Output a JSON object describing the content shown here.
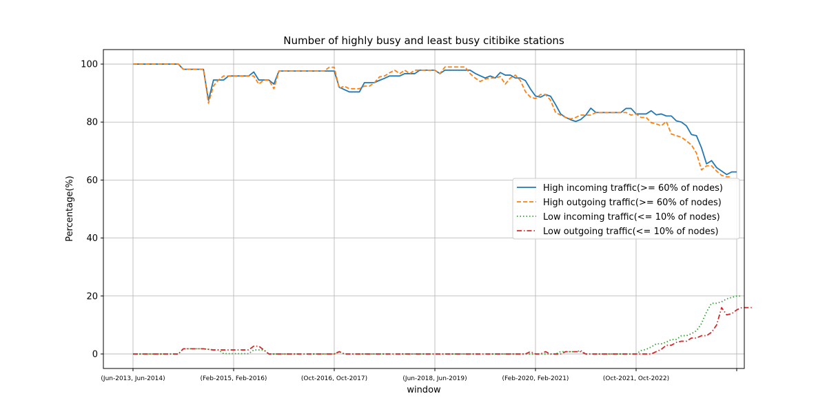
{
  "chart_data": {
    "type": "line",
    "title": "Number of highly busy and least busy citibike stations",
    "xlabel": "window",
    "ylabel": "Percentage(%)",
    "ylim": [
      -5,
      105
    ],
    "y_ticks": [
      0,
      20,
      40,
      60,
      80,
      100
    ],
    "x_ticks": [
      {
        "index": 0,
        "label": "(Jun-2013, Jun-2014)"
      },
      {
        "index": 20,
        "label": "(Feb-2015, Feb-2016)"
      },
      {
        "index": 40,
        "label": "(Oct-2016, Oct-2017)"
      },
      {
        "index": 60,
        "label": "(Jun-2018, Jun-2019)"
      },
      {
        "index": 80,
        "label": "(Feb-2020, Feb-2021)"
      },
      {
        "index": 100,
        "label": "(Oct-2021, Oct-2022)"
      },
      {
        "index": 120,
        "label": ""
      }
    ],
    "grid": true,
    "legend_position": "center-right",
    "series": [
      {
        "name": "High incoming traffic(>= 60% of nodes)",
        "color": "#1f77b4",
        "dash": "solid",
        "values": [
          100,
          100,
          100,
          100,
          100,
          100,
          100,
          100,
          100,
          100,
          98.2,
          98.2,
          98.2,
          98.2,
          98.2,
          87.5,
          94.5,
          94.5,
          94.5,
          95.9,
          95.9,
          95.9,
          95.9,
          95.9,
          97.3,
          94.5,
          94.5,
          94.5,
          93.1,
          97.6,
          97.6,
          97.6,
          97.6,
          97.6,
          97.6,
          97.6,
          97.6,
          97.6,
          97.6,
          97.6,
          97.6,
          92.0,
          91.2,
          90.4,
          90.4,
          90.4,
          93.6,
          93.6,
          93.6,
          94.4,
          95.1,
          95.9,
          95.9,
          95.9,
          96.7,
          96.7,
          96.7,
          97.9,
          97.9,
          97.9,
          97.9,
          96.7,
          97.9,
          97.9,
          97.9,
          97.9,
          97.9,
          97.9,
          96.8,
          96.0,
          95.2,
          95.9,
          95.2,
          97.1,
          96.2,
          96.2,
          95.2,
          95.2,
          94.3,
          91.4,
          89.0,
          88.6,
          89.5,
          88.9,
          86.0,
          82.8,
          81.6,
          80.8,
          80.2,
          80.9,
          82.4,
          84.8,
          83.3,
          83.3,
          83.3,
          83.3,
          83.3,
          83.3,
          84.7,
          84.7,
          82.8,
          82.8,
          82.8,
          83.9,
          82.5,
          82.8,
          82.1,
          82.1,
          80.4,
          80.0,
          78.7,
          75.7,
          75.3,
          71.1,
          65.6,
          66.7,
          64.3,
          63.1,
          61.9,
          62.8,
          62.8
        ]
      },
      {
        "name": "High outgoing traffic(>= 60% of nodes)",
        "color": "#ff7f0e",
        "dash": "dashed",
        "values": [
          100,
          100,
          100,
          100,
          100,
          100,
          100,
          100,
          100,
          100,
          98.2,
          98.2,
          98.2,
          98.2,
          98.2,
          86.5,
          92.5,
          94.5,
          95.9,
          95.9,
          95.9,
          95.9,
          95.9,
          95.9,
          95.9,
          93.1,
          94.5,
          94.5,
          91.5,
          97.6,
          97.6,
          97.6,
          97.6,
          97.6,
          97.6,
          97.6,
          97.6,
          97.6,
          97.6,
          98.9,
          98.9,
          91.6,
          92.4,
          91.5,
          91.5,
          91.5,
          92.4,
          92.4,
          93.6,
          95.6,
          95.9,
          97.0,
          97.9,
          96.7,
          97.9,
          96.7,
          97.9,
          97.9,
          97.9,
          97.9,
          97.9,
          96.7,
          99.0,
          99.0,
          99.0,
          99.0,
          99.0,
          96.7,
          95.2,
          94.0,
          94.8,
          95.2,
          95.2,
          95.7,
          93.1,
          95.2,
          96.2,
          94.3,
          90.5,
          88.6,
          88.1,
          89.5,
          89.5,
          87.5,
          83.3,
          82.4,
          81.6,
          81.1,
          81.6,
          82.4,
          82.4,
          82.4,
          83.3,
          83.3,
          83.3,
          83.3,
          83.3,
          83.3,
          83.3,
          82.4,
          82.8,
          81.6,
          81.6,
          79.8,
          79.4,
          78.7,
          80.2,
          75.9,
          75.3,
          74.8,
          73.5,
          72.1,
          69.3,
          63.5,
          64.9,
          64.9,
          63.1,
          61.6,
          61.1,
          61.1
        ]
      },
      {
        "name": "Low incoming traffic(<= 10% of nodes)",
        "color": "#2ca02c",
        "dash": "dotted",
        "values": [
          0,
          0,
          0,
          0,
          0,
          0,
          0,
          0,
          0,
          0,
          1.8,
          1.8,
          1.8,
          1.8,
          1.8,
          1.6,
          1.4,
          1.4,
          0.1,
          0.1,
          0.1,
          0.1,
          0.1,
          0.1,
          1.4,
          1.4,
          1.4,
          0,
          0,
          0,
          0,
          0,
          0,
          0,
          0,
          0,
          0,
          0,
          0,
          0,
          0,
          0.8,
          0,
          0,
          0,
          0,
          0,
          0,
          0,
          0,
          0,
          0,
          0,
          0,
          0,
          0,
          0,
          0,
          0,
          0,
          0,
          0,
          0,
          0,
          0,
          0,
          0,
          0,
          0,
          0,
          0,
          0,
          0,
          0,
          0,
          0,
          0,
          0,
          0,
          0,
          0,
          0,
          0,
          0,
          0,
          0.8,
          0.8,
          0.8,
          0.8,
          1.2,
          0,
          0,
          0,
          0,
          0,
          0,
          0,
          0,
          0,
          0,
          0,
          1.2,
          1.6,
          2.4,
          3.5,
          3.5,
          4.1,
          5.0,
          5.0,
          6.3,
          6.3,
          7.0,
          8.0,
          10.5,
          14.5,
          17.5,
          17.5,
          18.0,
          19.0,
          19.5,
          20.0,
          20.0
        ]
      },
      {
        "name": "Low outgoing traffic(<= 10% of nodes)",
        "color": "#d62728",
        "dash": "dashdot",
        "values": [
          0,
          0,
          0,
          0,
          0,
          0,
          0,
          0,
          0,
          0,
          1.8,
          1.8,
          1.8,
          1.8,
          1.8,
          1.6,
          1.4,
          1.4,
          1.4,
          1.4,
          1.4,
          1.4,
          1.4,
          1.4,
          2.7,
          2.7,
          1.4,
          0,
          0,
          0,
          0,
          0,
          0,
          0,
          0,
          0,
          0,
          0,
          0,
          0,
          0,
          0.8,
          0,
          0,
          0,
          0,
          0,
          0,
          0,
          0,
          0,
          0,
          0,
          0,
          0,
          0,
          0,
          0,
          0,
          0,
          0,
          0,
          0,
          0,
          0,
          0,
          0,
          0,
          0,
          0,
          0,
          0,
          0,
          0,
          0,
          0,
          0,
          0,
          0,
          0.8,
          0,
          0,
          0.8,
          0,
          0,
          0,
          0.8,
          0.8,
          0.8,
          0.8,
          0,
          0,
          0,
          0,
          0,
          0,
          0,
          0,
          0,
          0,
          0,
          0,
          0,
          0,
          0.8,
          1.6,
          3.0,
          3.0,
          4.0,
          4.4,
          4.4,
          5.5,
          5.5,
          6.3,
          6.3,
          7.5,
          10.0,
          16.0,
          13.5,
          13.9,
          15.2,
          16.0,
          16.0,
          16.0
        ]
      }
    ]
  }
}
